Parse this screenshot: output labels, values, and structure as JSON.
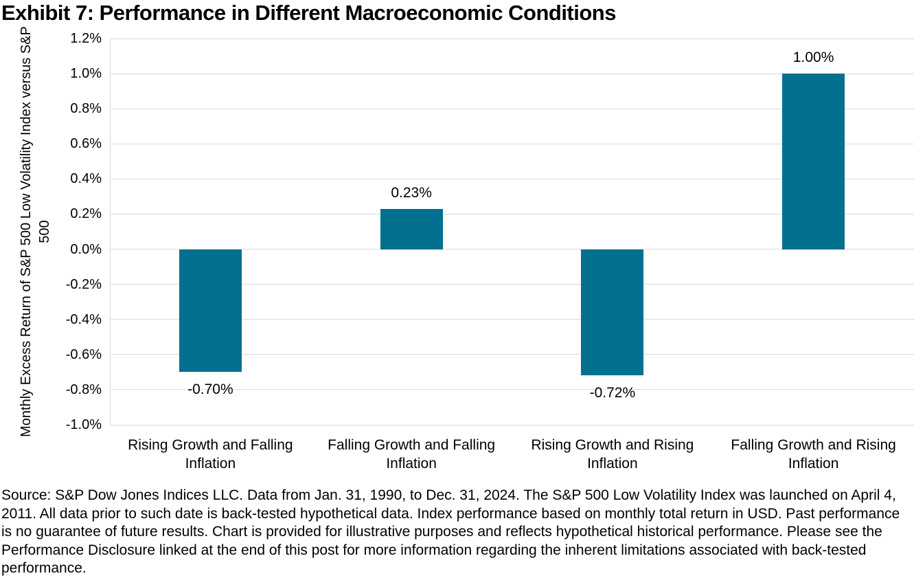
{
  "title": "Exhibit 7: Performance in Different Macroeconomic Conditions",
  "chart_data": {
    "type": "bar",
    "title": "Exhibit 7: Performance in Different Macroeconomic Conditions",
    "categories": [
      "Rising Growth and Falling Inflation",
      "Falling Growth and Falling Inflation",
      "Rising Growth and Rising Inflation",
      "Falling Growth and Rising Inflation"
    ],
    "values": [
      -0.7,
      0.23,
      -0.72,
      1.0
    ],
    "value_labels": [
      "-0.70%",
      "0.23%",
      "-0.72%",
      "1.00%"
    ],
    "xlabel": "",
    "ylabel": "Monthly Excess Return of S&P 500 Low Volatility Index versus S&P 500",
    "ylim": [
      -1.0,
      1.2
    ],
    "yticks": [
      {
        "value": 1.2,
        "label": "1.2%"
      },
      {
        "value": 1.0,
        "label": "1.0%"
      },
      {
        "value": 0.8,
        "label": "0.8%"
      },
      {
        "value": 0.6,
        "label": "0.6%"
      },
      {
        "value": 0.4,
        "label": "0.4%"
      },
      {
        "value": 0.2,
        "label": "0.2%"
      },
      {
        "value": 0.0,
        "label": "0.0%"
      },
      {
        "value": -0.2,
        "label": "-0.2%"
      },
      {
        "value": -0.4,
        "label": "-0.4%"
      },
      {
        "value": -0.6,
        "label": "-0.6%"
      },
      {
        "value": -0.8,
        "label": "-0.8%"
      },
      {
        "value": -1.0,
        "label": "-1.0%"
      }
    ],
    "grid": true,
    "legend_position": "none",
    "bar_color": "#02708E",
    "gridline_color": "#D9D9D9"
  },
  "footer": {
    "source_text": "Source: S&P Dow Jones Indices LLC. Data from Jan. 31, 1990, to Dec. 31, 2024. The S&P 500 Low Volatility Index was launched on April 4, 2011. All data prior to such date is back-tested hypothetical data. Index performance based on monthly total return in USD. Past performance is no guarantee of future results. Chart is provided for illustrative purposes and reflects hypothetical historical performance. Please see the Performance Disclosure linked at the end of this post for more information regarding the inherent limitations associated with back-tested performance."
  }
}
